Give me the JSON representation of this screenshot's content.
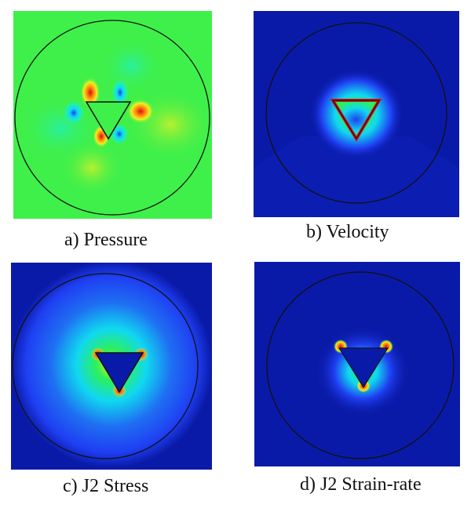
{
  "panels": [
    {
      "id": "a",
      "caption": "a) Pressure",
      "field": "pressure"
    },
    {
      "id": "b",
      "caption": "b) Velocity",
      "field": "velocity"
    },
    {
      "id": "c",
      "caption": "c) J2 Stress",
      "field": "j2-stress"
    },
    {
      "id": "d",
      "caption": "d) J2 Strain-rate",
      "field": "j2-strain-rate"
    }
  ],
  "colormap": {
    "low": "#0a1aa8",
    "blue": "#1f3ff2",
    "cyan": "#10d8f0",
    "green": "#2cf05a",
    "yellow": "#f0f020",
    "orange": "#ff8a10",
    "high": "#d81010"
  }
}
